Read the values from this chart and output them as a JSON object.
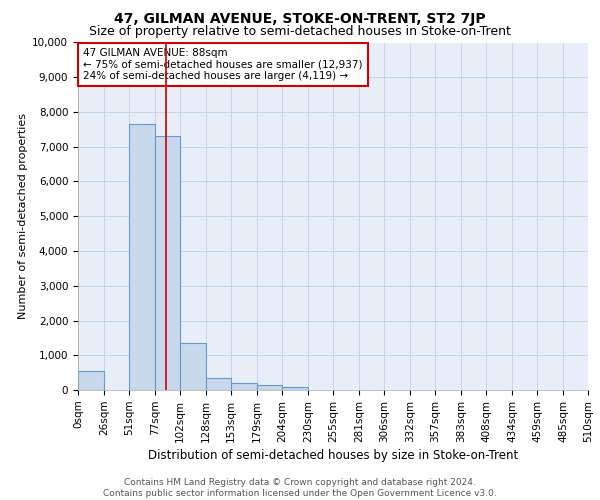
{
  "title": "47, GILMAN AVENUE, STOKE-ON-TRENT, ST2 7JP",
  "subtitle": "Size of property relative to semi-detached houses in Stoke-on-Trent",
  "xlabel": "Distribution of semi-detached houses by size in Stoke-on-Trent",
  "ylabel": "Number of semi-detached properties",
  "footer_line1": "Contains HM Land Registry data © Crown copyright and database right 2024.",
  "footer_line2": "Contains public sector information licensed under the Open Government Licence v3.0.",
  "annotation_title": "47 GILMAN AVENUE: 88sqm",
  "annotation_line1": "← 75% of semi-detached houses are smaller (12,937)",
  "annotation_line2": "24% of semi-detached houses are larger (4,119) →",
  "property_size": 88,
  "bin_edges": [
    0,
    26,
    51,
    77,
    102,
    128,
    153,
    179,
    204,
    230,
    255,
    281,
    306,
    332,
    357,
    383,
    408,
    434,
    459,
    485,
    510
  ],
  "bin_labels": [
    "0sqm",
    "26sqm",
    "51sqm",
    "77sqm",
    "102sqm",
    "128sqm",
    "153sqm",
    "179sqm",
    "204sqm",
    "230sqm",
    "255sqm",
    "281sqm",
    "306sqm",
    "332sqm",
    "357sqm",
    "383sqm",
    "408sqm",
    "434sqm",
    "459sqm",
    "485sqm",
    "510sqm"
  ],
  "bar_values": [
    550,
    0,
    7650,
    7300,
    1350,
    350,
    200,
    150,
    100,
    0,
    0,
    0,
    0,
    0,
    0,
    0,
    0,
    0,
    0,
    0
  ],
  "bar_color": "#c8d8ed",
  "bar_edgecolor": "#6699cc",
  "vline_color": "#cc0000",
  "ylim": [
    0,
    10000
  ],
  "yticks": [
    0,
    1000,
    2000,
    3000,
    4000,
    5000,
    6000,
    7000,
    8000,
    9000,
    10000
  ],
  "grid_color": "#c8d4e8",
  "background_color": "#e8eef8",
  "annotation_box_color": "#ffffff",
  "annotation_box_edgecolor": "#cc0000",
  "title_fontsize": 10,
  "subtitle_fontsize": 9,
  "xlabel_fontsize": 8.5,
  "ylabel_fontsize": 8,
  "tick_fontsize": 7.5,
  "annotation_fontsize": 7.5,
  "footer_fontsize": 6.5
}
